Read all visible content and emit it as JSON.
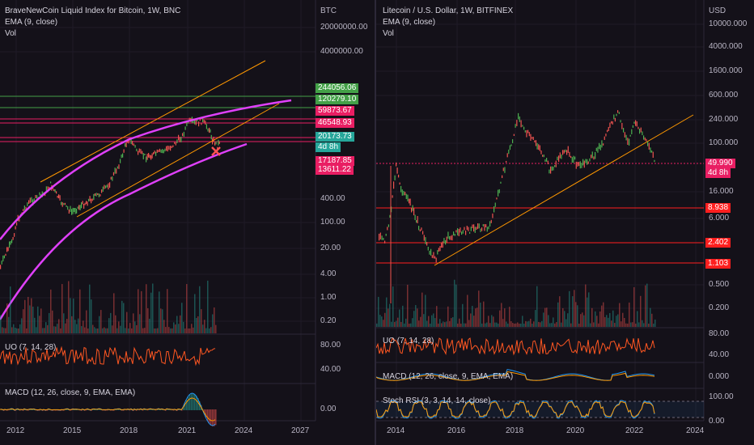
{
  "left_chart": {
    "title": "BraveNewCoin Liquid Index for Bitcoin, 1W, BNC",
    "indicator_ema": "EMA (9, close)",
    "indicator_vol": "Vol",
    "currency": "BTC",
    "uo_label": "UO (7, 14, 28)",
    "macd_label": "MACD (12, 26, close, 9, EMA, EMA)",
    "price_ticks": [
      "20000000.00",
      "4000000.00",
      "400.00",
      "100.00",
      "20.00",
      "4.00",
      "1.00",
      "0.20"
    ],
    "uo_ticks": [
      "80.00",
      "40.00"
    ],
    "macd_ticks": [
      "0.00"
    ],
    "x_ticks": [
      "2012",
      "2015",
      "2018",
      "2021",
      "2024",
      "2027"
    ],
    "price_tags": [
      {
        "text": "244056.06",
        "color": "#43a047"
      },
      {
        "text": "120279.10",
        "color": "#43a047"
      },
      {
        "text": "59873.67",
        "color": "#e91e63"
      },
      {
        "text": "46548.93",
        "color": "#e91e63"
      },
      {
        "text": "20173.73",
        "color": "#26a69a"
      },
      {
        "text": "4d 8h",
        "color": "#26a69a"
      },
      {
        "text": "17187.85",
        "color": "#e91e63"
      },
      {
        "text": "13611.22",
        "color": "#e91e63"
      }
    ]
  },
  "right_chart": {
    "title": "Litecoin / U.S. Dollar, 1W, BITFINEX",
    "indicator_ema": "EMA (9, close)",
    "indicator_vol": "Vol",
    "currency": "USD",
    "uo_label": "UO (7, 14, 28)",
    "macd_label": "MACD (12, 26, close, 9, EMA, EMA)",
    "stoch_label": "Stoch RSI (3, 3, 14, 14, close)",
    "price_ticks": [
      "10000.000",
      "4000.000",
      "1600.000",
      "600.000",
      "240.000",
      "100.000",
      "16.000",
      "6.000",
      "0.500",
      "0.200"
    ],
    "uo_ticks": [
      "80.00",
      "40.00"
    ],
    "macd_ticks": [
      "0.000"
    ],
    "stoch_ticks": [
      "100.00",
      "0.00"
    ],
    "x_ticks": [
      "2014",
      "2016",
      "2018",
      "2020",
      "2022",
      "2024"
    ],
    "price_tags": [
      {
        "text": "49.990",
        "color": "#e91e63"
      },
      {
        "text": "4d 8h",
        "color": "#e91e63"
      },
      {
        "text": "8.938",
        "color": "#ff1f1f"
      },
      {
        "text": "2.402",
        "color": "#ff1f1f"
      },
      {
        "text": "1.103",
        "color": "#ff1f1f"
      }
    ]
  },
  "colors": {
    "background": "#141119",
    "up": "#26a69a",
    "down": "#ef5350",
    "candle_up": "#4caf50",
    "trendline": "#ff9800",
    "curve": "#e040fb",
    "level_green": "#43a047",
    "level_pink": "#e91e63",
    "level_red": "#ff1f1f",
    "uo": "#ff5722",
    "macd": "#2196f3",
    "signal": "#ff9800",
    "stoch_k": "#2196f3",
    "stoch_d": "#ff9800"
  },
  "chart_data": [
    {
      "type": "line",
      "title": "BraveNewCoin Liquid Index for Bitcoin, 1W, BNC",
      "series": [
        {
          "name": "BraveNewCoin Liquid Index for Bitcoin",
          "x": [
            2010.5,
            2011.5,
            2012.0,
            2013.0,
            2013.9,
            2014.5,
            2015.0,
            2016.0,
            2017.0,
            2017.95,
            2018.5,
            2019.0,
            2019.5,
            2020.2,
            2020.9,
            2021.3,
            2021.6,
            2021.9,
            2022.3,
            2022.5
          ],
          "values": [
            0.1,
            15,
            4,
            100,
            1100,
            500,
            200,
            400,
            1000,
            19000,
            6500,
            3400,
            12000,
            5000,
            19000,
            60000,
            32000,
            65000,
            40000,
            20173.73
          ]
        }
      ],
      "ylog": true,
      "xlim": [
        2010.5,
        2027.8
      ]
    },
    {
      "type": "line",
      "title": "Litecoin / U.S. Dollar, 1W, BITFINEX",
      "series": [
        {
          "name": "Litecoin / U.S. Dollar",
          "x": [
            2013.4,
            2013.9,
            2014.3,
            2015.0,
            2015.6,
            2016.5,
            2017.3,
            2017.95,
            2018.5,
            2018.95,
            2019.5,
            2019.95,
            2020.5,
            2021.1,
            2021.35,
            2021.6,
            2021.95,
            2022.3,
            2022.5
          ],
          "values": [
            3,
            40,
            12,
            2,
            3,
            4,
            5,
            350,
            120,
            25,
            140,
            40,
            45,
            200,
            410,
            130,
            230,
            110,
            49.99
          ]
        }
      ],
      "ylog": true,
      "xlim": [
        2013.4,
        2024.4
      ]
    }
  ]
}
